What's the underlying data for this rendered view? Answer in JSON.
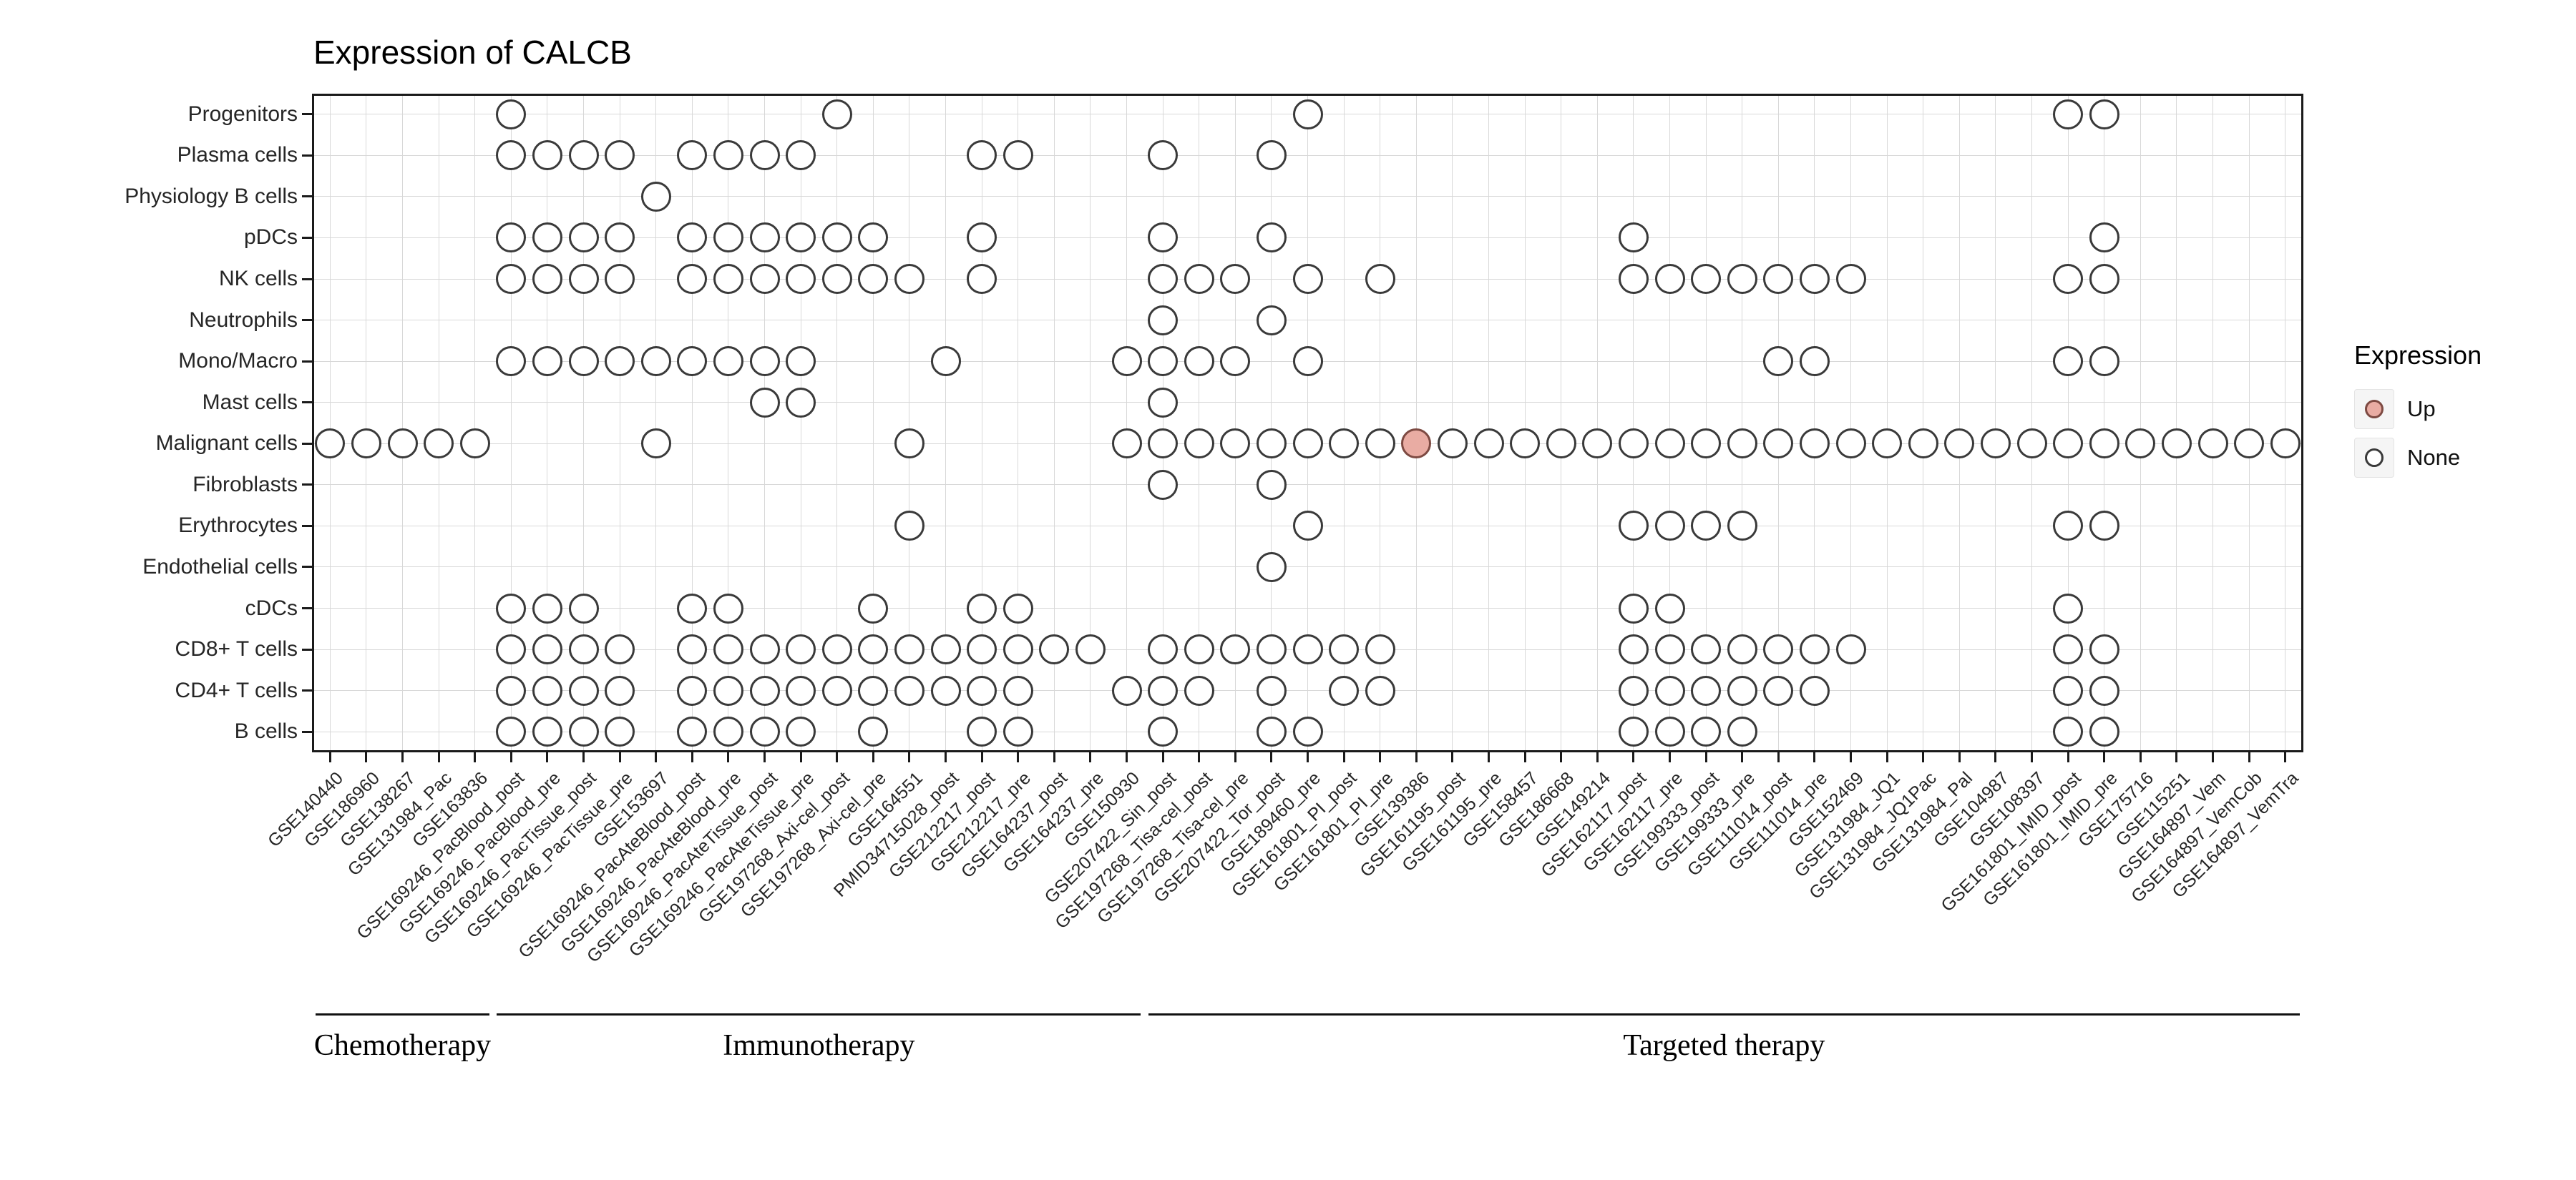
{
  "title": "Expression of CALCB",
  "legend": {
    "title": "Expression",
    "items": [
      {
        "label": "Up",
        "fill": "#e9aca3",
        "stroke": "#7d4a42"
      },
      {
        "label": "None",
        "fill": "#ffffff",
        "stroke": "#3a3a3a"
      }
    ]
  },
  "chart_data": {
    "type": "dot-matrix",
    "title": "Expression of CALCB",
    "legend_position": "right",
    "grid": true,
    "x_label_angle": 45,
    "x_axis": {
      "label": "",
      "categories": [
        "GSE140440",
        "GSE186960",
        "GSE138267",
        "GSE131984_Pac",
        "GSE163836",
        "GSE169246_PacBlood_post",
        "GSE169246_PacBlood_pre",
        "GSE169246_PacTissue_post",
        "GSE169246_PacTissue_pre",
        "GSE153697",
        "GSE169246_PacAteBlood_post",
        "GSE169246_PacAteBlood_pre",
        "GSE169246_PacAteTissue_post",
        "GSE169246_PacAteTissue_pre",
        "GSE197268_Axi-cel_post",
        "GSE197268_Axi-cel_pre",
        "GSE164551",
        "PMID34715028_post",
        "GSE212217_post",
        "GSE212217_pre",
        "GSE164237_post",
        "GSE164237_pre",
        "GSE150930",
        "GSE207422_Sin_post",
        "GSE197268_Tisa-cel_post",
        "GSE197268_Tisa-cel_pre",
        "GSE207422_Tor_post",
        "GSE189460_pre",
        "GSE161801_PI_post",
        "GSE161801_PI_pre",
        "GSE139386",
        "GSE161195_post",
        "GSE161195_pre",
        "GSE158457",
        "GSE186668",
        "GSE149214",
        "GSE162117_post",
        "GSE162117_pre",
        "GSE199333_post",
        "GSE199333_pre",
        "GSE111014_post",
        "GSE111014_pre",
        "GSE152469",
        "GSE131984_JQ1",
        "GSE131984_JQ1Pac",
        "GSE131984_Pal",
        "GSE104987",
        "GSE108397",
        "GSE161801_IMID_post",
        "GSE161801_IMID_pre",
        "GSE175716",
        "GSE115251",
        "GSE164897_Vem",
        "GSE164897_VemCob",
        "GSE164897_VemTra"
      ]
    },
    "y_axis": {
      "label": "",
      "categories": [
        "Progenitors",
        "Plasma cells",
        "Physiology B cells",
        "pDCs",
        "NK cells",
        "Neutrophils",
        "Mono/Macro",
        "Mast cells",
        "Malignant cells",
        "Fibroblasts",
        "Erythrocytes",
        "Endothelial cells",
        "cDCs",
        "CD8+ T cells",
        "CD4+ T cells",
        "B cells"
      ]
    },
    "groups": [
      {
        "label": "Chemotherapy",
        "columns_1based": [
          1,
          5
        ]
      },
      {
        "label": "Immunotherapy",
        "columns_1based": [
          6,
          23
        ]
      },
      {
        "label": "Targeted therapy",
        "columns_1based": [
          24,
          55
        ]
      }
    ],
    "up_points": [
      {
        "row": "Malignant cells",
        "column": "GSE139386"
      }
    ],
    "none_points_col_indices_1based": {
      "Progenitors": [
        6,
        15,
        28,
        49,
        50
      ],
      "Plasma cells": [
        6,
        7,
        8,
        9,
        11,
        12,
        13,
        14,
        19,
        20,
        24,
        27
      ],
      "Physiology B cells": [
        10
      ],
      "pDCs": [
        6,
        7,
        8,
        9,
        11,
        12,
        13,
        14,
        15,
        16,
        19,
        24,
        27,
        37,
        50
      ],
      "NK cells": [
        6,
        7,
        8,
        9,
        11,
        12,
        13,
        14,
        15,
        16,
        17,
        19,
        24,
        25,
        26,
        28,
        30,
        37,
        38,
        39,
        40,
        41,
        42,
        43,
        49,
        50
      ],
      "Neutrophils": [
        24,
        27
      ],
      "Mono/Macro": [
        6,
        7,
        8,
        9,
        10,
        11,
        12,
        13,
        14,
        18,
        23,
        24,
        25,
        26,
        28,
        41,
        42,
        49,
        50
      ],
      "Mast cells": [
        13,
        14,
        24
      ],
      "Malignant cells": [
        1,
        2,
        3,
        4,
        5,
        10,
        17,
        23,
        24,
        25,
        26,
        27,
        28,
        29,
        30,
        32,
        33,
        34,
        35,
        36,
        37,
        38,
        39,
        40,
        41,
        42,
        43,
        44,
        45,
        46,
        47,
        48,
        49,
        50,
        51,
        52,
        53,
        54,
        55
      ],
      "Fibroblasts": [
        24,
        27
      ],
      "Erythrocytes": [
        17,
        28,
        37,
        38,
        39,
        40,
        49,
        50
      ],
      "Endothelial cells": [
        27
      ],
      "cDCs": [
        6,
        7,
        8,
        11,
        12,
        16,
        19,
        20,
        37,
        38,
        49
      ],
      "CD8+ T cells": [
        6,
        7,
        8,
        9,
        11,
        12,
        13,
        14,
        15,
        16,
        17,
        18,
        19,
        20,
        21,
        22,
        24,
        25,
        26,
        27,
        28,
        29,
        30,
        37,
        38,
        39,
        40,
        41,
        42,
        43,
        49,
        50
      ],
      "CD4+ T cells": [
        6,
        7,
        8,
        9,
        11,
        12,
        13,
        14,
        15,
        16,
        17,
        18,
        19,
        20,
        23,
        24,
        25,
        27,
        29,
        30,
        37,
        38,
        39,
        40,
        41,
        42,
        49,
        50
      ],
      "B cells": [
        6,
        7,
        8,
        9,
        11,
        12,
        13,
        14,
        16,
        19,
        20,
        24,
        27,
        28,
        37,
        38,
        39,
        40,
        49,
        50
      ]
    }
  }
}
